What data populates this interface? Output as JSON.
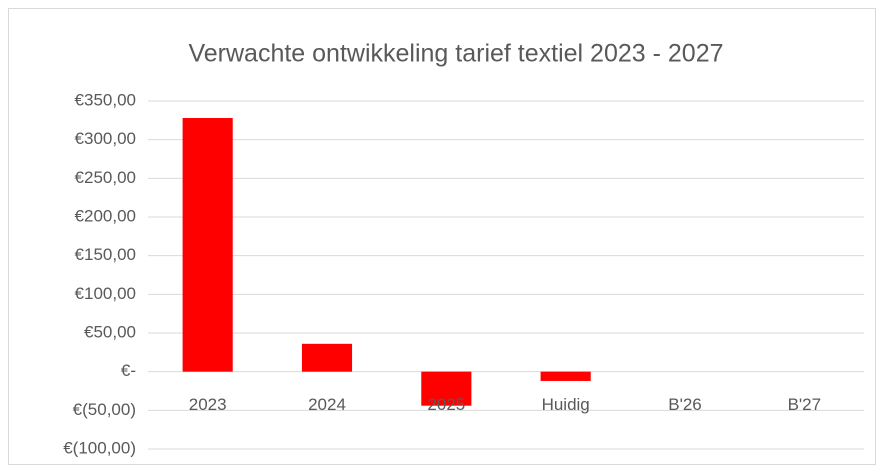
{
  "chart_data": {
    "type": "bar",
    "title": "Verwachte ontwikkeling tarief textiel 2023 - 2027",
    "categories": [
      "2023",
      "2024",
      "2025",
      "Huidig",
      "B'26",
      "B'27"
    ],
    "values": [
      328,
      36,
      -44,
      -12,
      0,
      0
    ],
    "color": "#ff0000",
    "ylim": [
      -100,
      350
    ],
    "yticks": [
      {
        "value": -100,
        "label": "€(100,00)"
      },
      {
        "value": -50,
        "label": "€(50,00)"
      },
      {
        "value": 0,
        "label": "€-"
      },
      {
        "value": 50,
        "label": "€50,00"
      },
      {
        "value": 100,
        "label": "€100,00"
      },
      {
        "value": 150,
        "label": "€150,00"
      },
      {
        "value": 200,
        "label": "€200,00"
      },
      {
        "value": 250,
        "label": "€250,00"
      },
      {
        "value": 300,
        "label": "€300,00"
      },
      {
        "value": 350,
        "label": "€350,00"
      }
    ],
    "grid": true
  }
}
